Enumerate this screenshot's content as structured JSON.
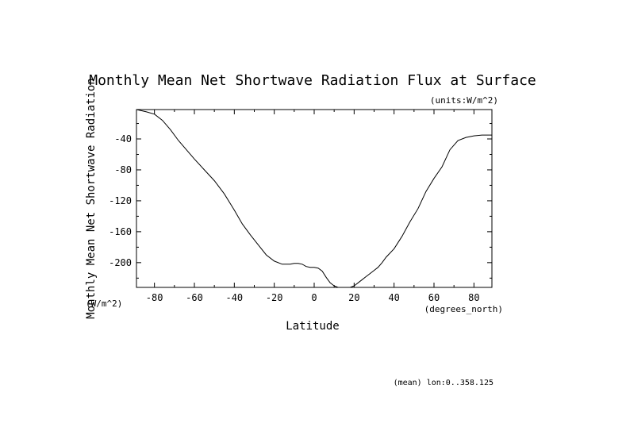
{
  "chart_data": {
    "type": "line",
    "title": "Monthly Mean Net Shortwave Radiation Flux at Surface",
    "units_note": "(units:W/m^2)",
    "xlabel": "Latitude",
    "x_units": "(degrees_north)",
    "ylabel": "Monthly Mean Net Shortwave Radiation",
    "y_units": "(W/m^2)",
    "footnote": "(mean) lon:0..358.125",
    "xlim": [
      -89,
      89
    ],
    "ylim": [
      -232,
      -2
    ],
    "x_ticks": [
      -80,
      -60,
      -40,
      -20,
      0,
      20,
      40,
      60,
      80
    ],
    "y_ticks": [
      -40,
      -80,
      -120,
      -160,
      -200
    ],
    "x_tick_labels": [
      "-80",
      "-60",
      "-40",
      "-20",
      "0",
      "20",
      "40",
      "60",
      "80"
    ],
    "y_tick_labels": [
      "-40",
      "-80",
      "-120",
      "-160",
      "-200"
    ],
    "series": [
      {
        "name": "net_shortwave_flux",
        "x": [
          -89,
          -84,
          -80,
          -76,
          -72,
          -68,
          -64,
          -60,
          -55,
          -50,
          -45,
          -40,
          -36,
          -32,
          -28,
          -24,
          -20,
          -16,
          -12,
          -10,
          -8,
          -6,
          -4,
          -2,
          0,
          2,
          4,
          6,
          8,
          10,
          12,
          14,
          16,
          18,
          20,
          22,
          24,
          26,
          28,
          30,
          32,
          34,
          36,
          40,
          44,
          48,
          52,
          56,
          60,
          64,
          68,
          72,
          76,
          80,
          84,
          89
        ],
        "y": [
          -2,
          -5,
          -8,
          -16,
          -28,
          -42,
          -54,
          -66,
          -80,
          -94,
          -111,
          -132,
          -150,
          -164,
          -177,
          -190,
          -198,
          -202,
          -202,
          -201,
          -201,
          -202,
          -205,
          -206,
          -206,
          -207,
          -211,
          -219,
          -226,
          -230,
          -232,
          -232,
          -232,
          -232,
          -230,
          -226,
          -222,
          -218,
          -214,
          -210,
          -206,
          -200,
          -193,
          -182,
          -166,
          -147,
          -130,
          -108,
          -91,
          -76,
          -54,
          -42,
          -38,
          -36,
          -35,
          -35
        ]
      }
    ]
  }
}
